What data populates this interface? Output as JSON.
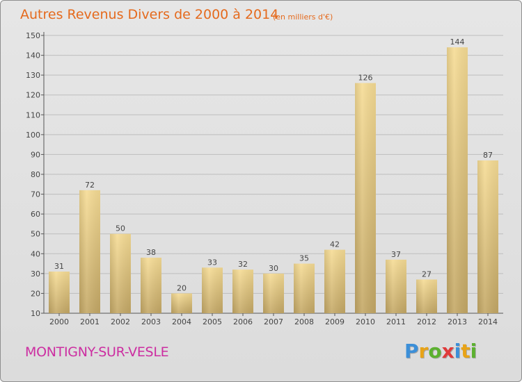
{
  "header": {
    "title": "Autres Revenus Divers de 2000 à 2014",
    "unit": "(en milliers d'€)"
  },
  "footer": {
    "commune": "MONTIGNY-SUR-VESLE",
    "logo": {
      "letters": [
        "P",
        "r",
        "o",
        "x",
        "i",
        "t",
        "i"
      ],
      "colors": [
        "#3c8fd8",
        "#e8a317",
        "#5cb130",
        "#e03a3a",
        "#3c8fd8",
        "#e8a317",
        "#5cb130"
      ]
    }
  },
  "chart_data": {
    "type": "bar",
    "title": "Autres Revenus Divers de 2000 à 2014",
    "subtitle": "(en milliers d'€)",
    "xlabel": "",
    "ylabel": "",
    "categories": [
      "2000",
      "2001",
      "2002",
      "2003",
      "2004",
      "2005",
      "2006",
      "2007",
      "2008",
      "2009",
      "2010",
      "2011",
      "2012",
      "2013",
      "2014"
    ],
    "values": [
      31,
      72,
      50,
      38,
      20,
      33,
      32,
      30,
      35,
      42,
      126,
      37,
      27,
      144,
      87
    ],
    "ylim": [
      10,
      150
    ],
    "yticks": [
      10,
      20,
      30,
      40,
      50,
      60,
      70,
      80,
      90,
      100,
      110,
      120,
      130,
      140,
      150
    ],
    "grid": true,
    "bar_color": "#e8cc82"
  }
}
